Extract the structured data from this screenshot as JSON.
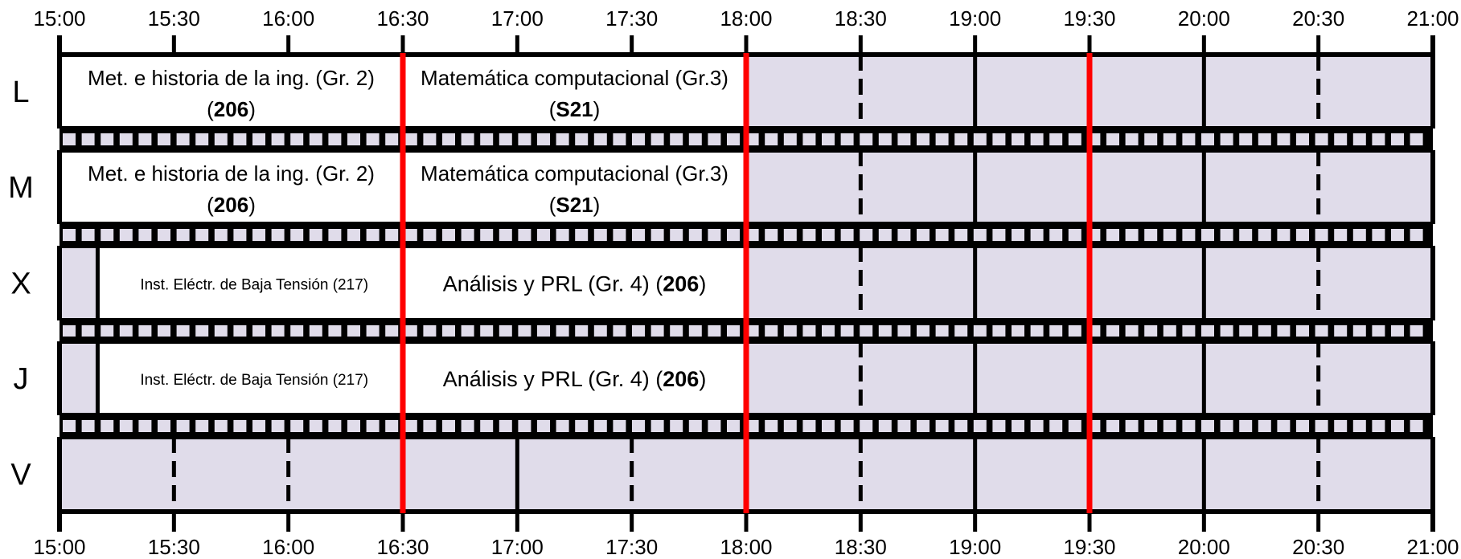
{
  "time_axis": {
    "start": "15:00",
    "end": "21:00",
    "ticks": [
      "15:00",
      "15:30",
      "16:00",
      "16:30",
      "17:00",
      "17:30",
      "18:00",
      "18:30",
      "19:00",
      "19:30",
      "20:00",
      "20:30",
      "21:00"
    ],
    "dashed_ticks": [
      "15:30",
      "16:00",
      "17:30",
      "18:30",
      "20:30"
    ],
    "highlight_ticks": [
      "16:30",
      "18:00",
      "19:30"
    ]
  },
  "colors": {
    "grid": "#000000",
    "free_slot": "#e0dcea",
    "event_fill": "#ffffff",
    "highlight_line": "#ff0000"
  },
  "days": [
    {
      "key": "L",
      "label": "L"
    },
    {
      "key": "M",
      "label": "M"
    },
    {
      "key": "X",
      "label": "X"
    },
    {
      "key": "J",
      "label": "J"
    },
    {
      "key": "V",
      "label": "V"
    }
  ],
  "events": [
    {
      "day": "L",
      "start": "15:00",
      "end": "16:30",
      "line1": "Met. e historia de la ing. (Gr. 2)",
      "room_open": "(",
      "room": "206",
      "room_close": ")"
    },
    {
      "day": "L",
      "start": "16:30",
      "end": "18:00",
      "line1": "Matemática computacional  (Gr.3)",
      "room_open": "(",
      "room": "S21",
      "room_close": ")"
    },
    {
      "day": "M",
      "start": "15:00",
      "end": "16:30",
      "line1": "Met. e historia de la ing. (Gr. 2)",
      "room_open": "(",
      "room": "206",
      "room_close": ")"
    },
    {
      "day": "M",
      "start": "16:30",
      "end": "18:00",
      "line1": "Matemática computacional  (Gr.3)",
      "room_open": "(",
      "room": "S21",
      "room_close": ")"
    },
    {
      "day": "X",
      "start": "15:10",
      "end": "16:30",
      "line1": "Inst. Eléctr. de Baja Tensión (217)",
      "small": true
    },
    {
      "day": "X",
      "start": "16:30",
      "end": "18:00",
      "prefix": "Análisis y PRL (Gr. 4) (",
      "room": "206",
      "suffix": ")"
    },
    {
      "day": "J",
      "start": "15:10",
      "end": "16:30",
      "line1": "Inst. Eléctr. de Baja Tensión (217)",
      "small": true
    },
    {
      "day": "J",
      "start": "16:30",
      "end": "18:00",
      "prefix": "Análisis y PRL (Gr. 4) (",
      "room": "206",
      "suffix": ")"
    }
  ]
}
